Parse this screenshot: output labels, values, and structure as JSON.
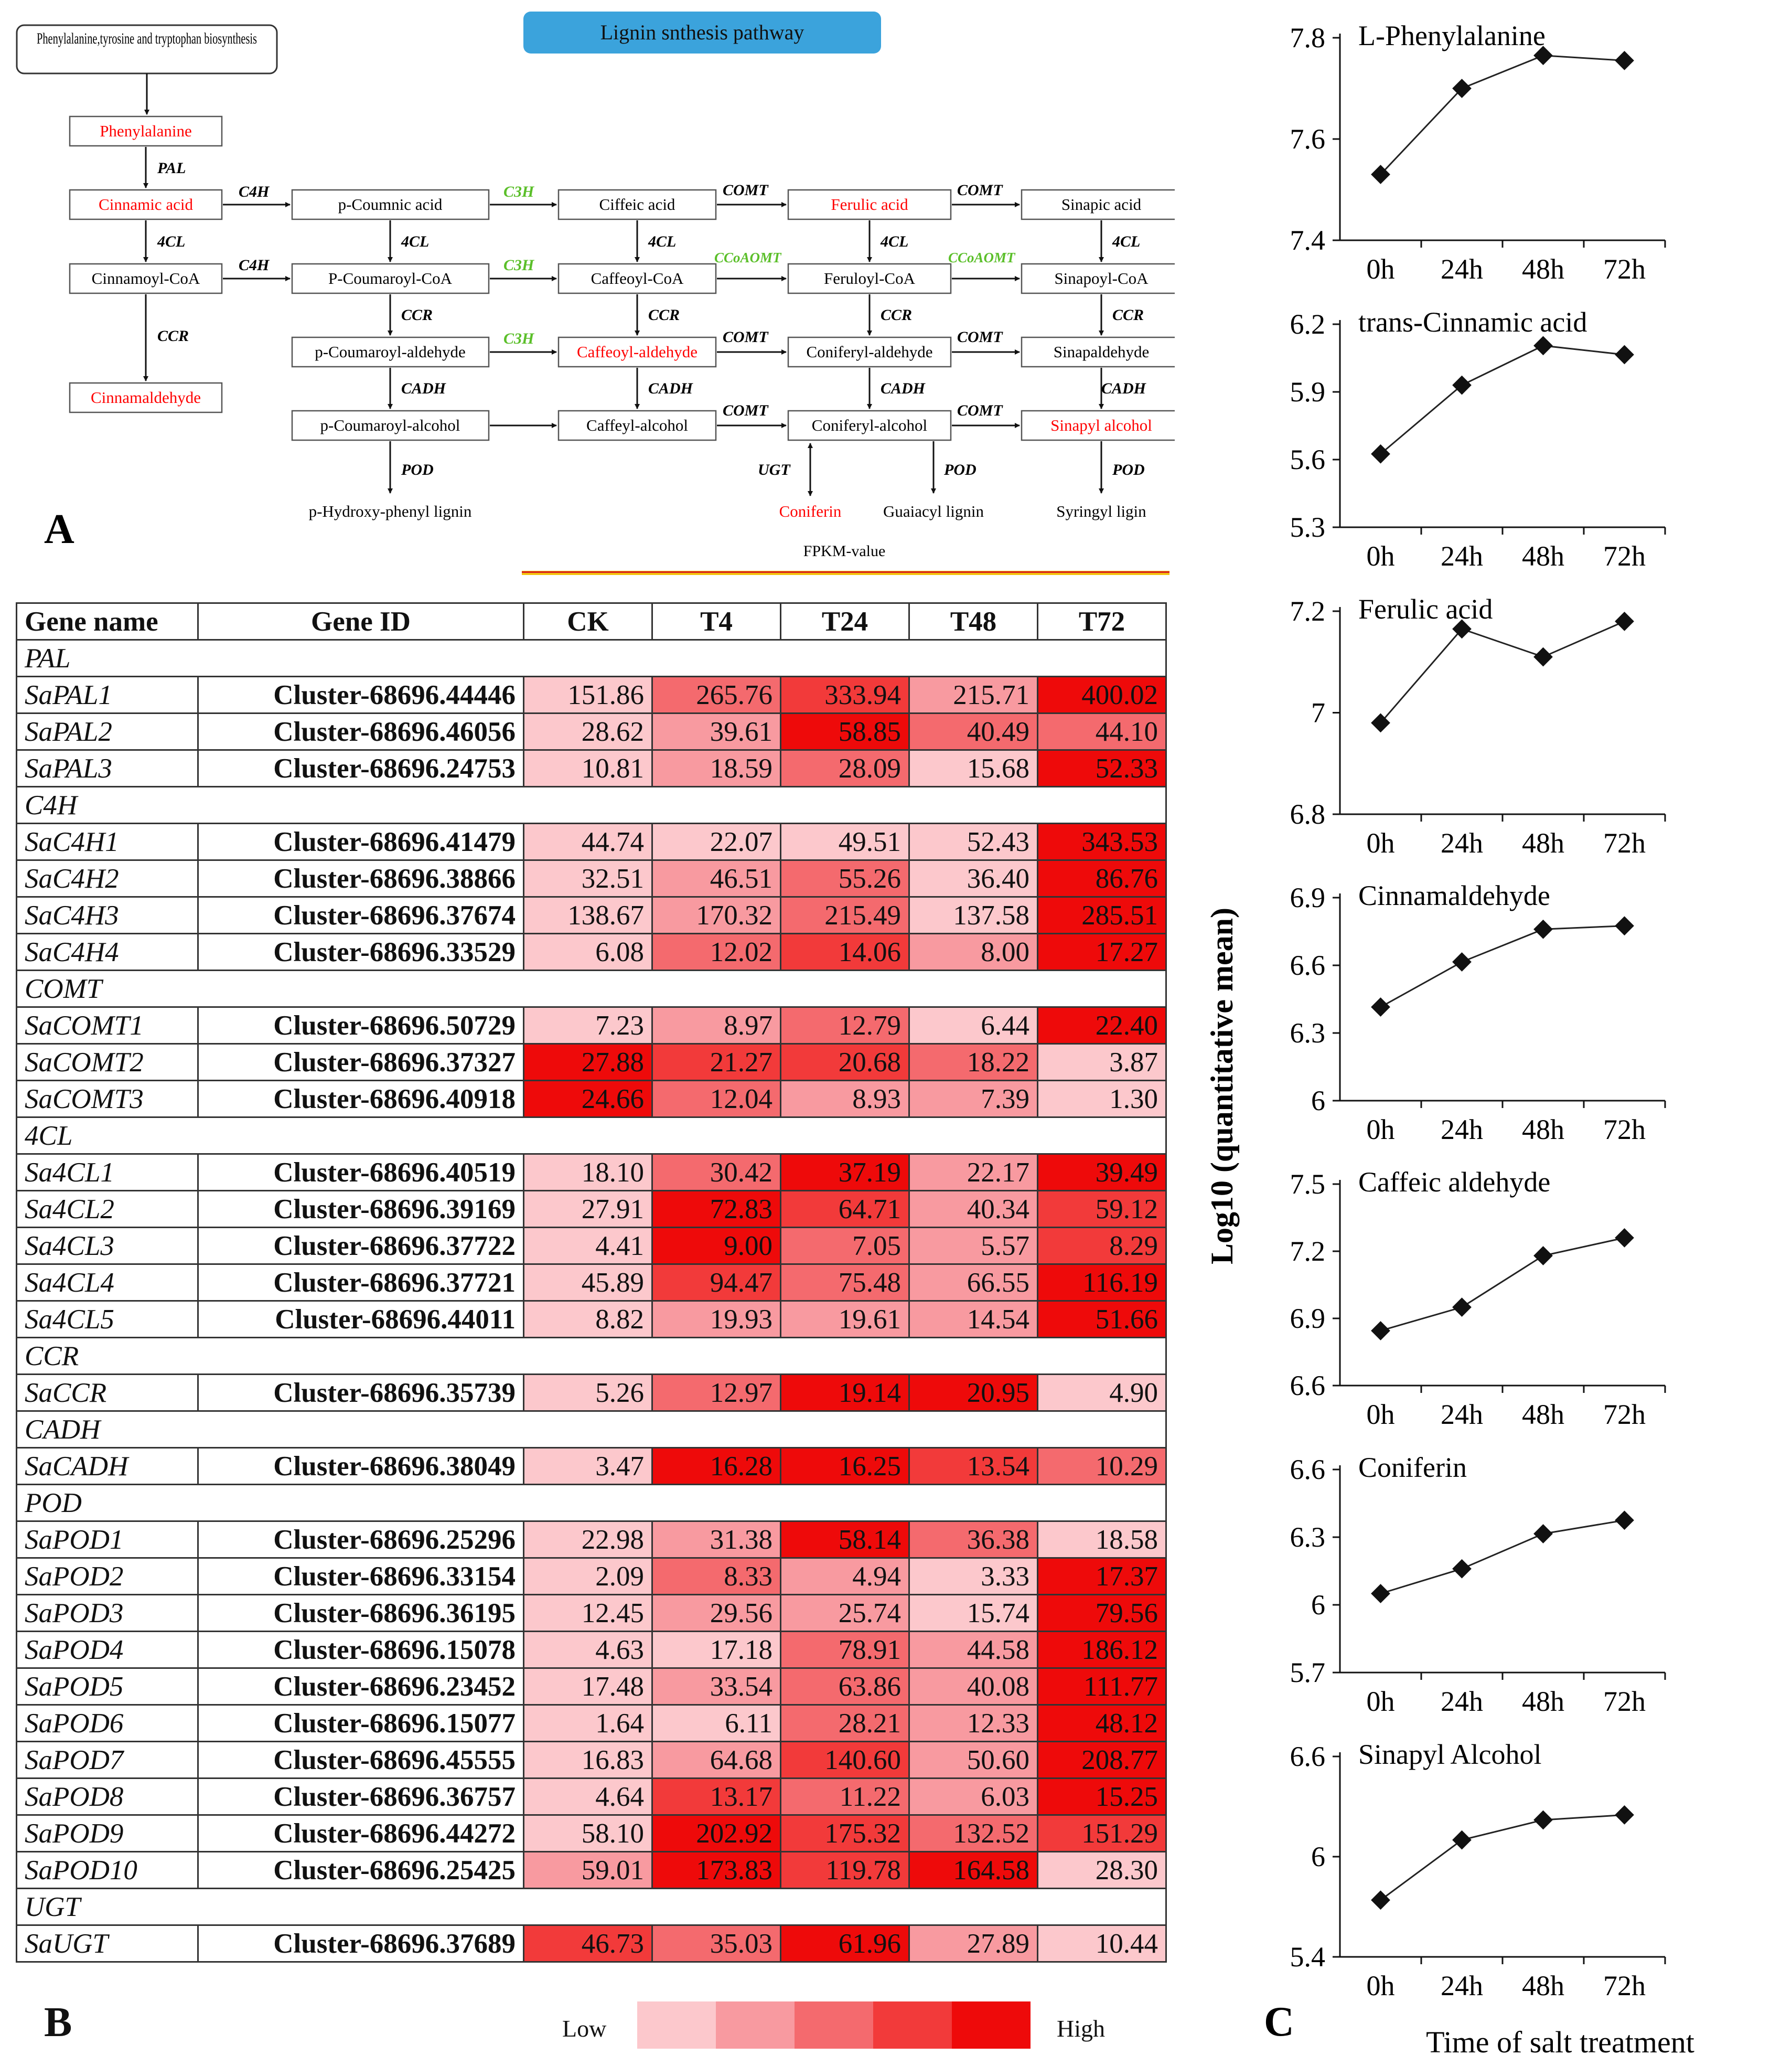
{
  "panel_a": {
    "letter": "A",
    "title": "Lignin snthesis pathway",
    "source_box": "Phenylalanine,tyrosine and tryptophan biosynthesis",
    "nodes": {
      "phe": "Phenylalanine",
      "cin": "Cinnamic acid",
      "pcoum": "p-Coumnic acid",
      "caff": "Ciffeic acid",
      "fer": "Ferulic acid",
      "sinap": "Sinapic acid",
      "cincoa": "Cinnamoyl-CoA",
      "pcoumcoa": "P-Coumaroyl-CoA",
      "caffcoa": "Caffeoyl-CoA",
      "fercoa": "Feruloyl-CoA",
      "sinapcoa": "Sinapoyl-CoA",
      "pcoumald": "p-Coumaroyl-aldehyde",
      "caffald": "Caffeoyl-aldehyde",
      "conald": "Coniferyl-aldehyde",
      "sinapald": "Sinapaldehyde",
      "cinald": "Cinnamaldehyde",
      "pcoumalc": "p-Coumaroyl-alcohol",
      "caffalc": "Caffeyl-alcohol",
      "conalc": "Coniferyl-alcohol",
      "sinapalc": "Sinapyl alcohol",
      "phlig": "p-Hydroxy-phenyl lignin",
      "coniferin": "Coniferin",
      "guaiacyl": "Guaiacyl lignin",
      "syringyl": "Syringyl ligin"
    },
    "enzymes": {
      "pal": "PAL",
      "c4h": "C4H",
      "c3h": "C3H",
      "comt": "COMT",
      "cl4": "4CL",
      "ccoaomt": "CCoAOMT",
      "ccr": "CCR",
      "cadh": "CADH",
      "pod": "POD",
      "ugt": "UGT"
    },
    "colors": {
      "metabolite": "#ff0000",
      "gene_green": "#5bbf2a",
      "title_bg": "#3ba3dc"
    }
  },
  "panel_b": {
    "letter": "B",
    "scale_label": "FPKM-value",
    "legend_low": "Low",
    "legend_high": "High",
    "headers": [
      "Gene name",
      "Gene ID",
      "CK",
      "T4",
      "T24",
      "T48",
      "T72"
    ],
    "heat_colors": [
      "#fcc8cc",
      "#f89aa0",
      "#f46a6e",
      "#f23a3a",
      "#ee0a0a"
    ],
    "groups": [
      {
        "name": "PAL",
        "rows": [
          {
            "gene": "SaPAL1",
            "id": "Cluster-68696.44446",
            "values": [
              "151.86",
              "265.76",
              "333.94",
              "215.71",
              "400.02"
            ]
          },
          {
            "gene": "SaPAL2",
            "id": "Cluster-68696.46056",
            "values": [
              "28.62",
              "39.61",
              "58.85",
              "40.49",
              "44.10"
            ]
          },
          {
            "gene": "SaPAL3",
            "id": "Cluster-68696.24753",
            "values": [
              "10.81",
              "18.59",
              "28.09",
              "15.68",
              "52.33"
            ]
          }
        ]
      },
      {
        "name": "C4H",
        "rows": [
          {
            "gene": "SaC4H1",
            "id": "Cluster-68696.41479",
            "values": [
              "44.74",
              "22.07",
              "49.51",
              "52.43",
              "343.53"
            ]
          },
          {
            "gene": "SaC4H2",
            "id": "Cluster-68696.38866",
            "values": [
              "32.51",
              "46.51",
              "55.26",
              "36.40",
              "86.76"
            ]
          },
          {
            "gene": "SaC4H3",
            "id": "Cluster-68696.37674",
            "values": [
              "138.67",
              "170.32",
              "215.49",
              "137.58",
              "285.51"
            ]
          },
          {
            "gene": "SaC4H4",
            "id": "Cluster-68696.33529",
            "values": [
              "6.08",
              "12.02",
              "14.06",
              "8.00",
              "17.27"
            ]
          }
        ]
      },
      {
        "name": "COMT",
        "rows": [
          {
            "gene": "SaCOMT1",
            "id": "Cluster-68696.50729",
            "values": [
              "7.23",
              "8.97",
              "12.79",
              "6.44",
              "22.40"
            ]
          },
          {
            "gene": "SaCOMT2",
            "id": "Cluster-68696.37327",
            "values": [
              "27.88",
              "21.27",
              "20.68",
              "18.22",
              "3.87"
            ]
          },
          {
            "gene": "SaCOMT3",
            "id": "Cluster-68696.40918",
            "values": [
              "24.66",
              "12.04",
              "8.93",
              "7.39",
              "1.30"
            ]
          }
        ]
      },
      {
        "name": "4CL",
        "rows": [
          {
            "gene": "Sa4CL1",
            "id": "Cluster-68696.40519",
            "values": [
              "18.10",
              "30.42",
              "37.19",
              "22.17",
              "39.49"
            ]
          },
          {
            "gene": "Sa4CL2",
            "id": "Cluster-68696.39169",
            "values": [
              "27.91",
              "72.83",
              "64.71",
              "40.34",
              "59.12"
            ]
          },
          {
            "gene": "Sa4CL3",
            "id": "Cluster-68696.37722",
            "values": [
              "4.41",
              "9.00",
              "7.05",
              "5.57",
              "8.29"
            ]
          },
          {
            "gene": "Sa4CL4",
            "id": "Cluster-68696.37721",
            "values": [
              "45.89",
              "94.47",
              "75.48",
              "66.55",
              "116.19"
            ]
          },
          {
            "gene": "Sa4CL5",
            "id": "Cluster-68696.44011",
            "values": [
              "8.82",
              "19.93",
              "19.61",
              "14.54",
              "51.66"
            ]
          }
        ]
      },
      {
        "name": "CCR",
        "rows": [
          {
            "gene": "SaCCR",
            "id": "Cluster-68696.35739",
            "values": [
              "5.26",
              "12.97",
              "19.14",
              "20.95",
              "4.90"
            ]
          }
        ]
      },
      {
        "name": "CADH",
        "rows": [
          {
            "gene": "SaCADH",
            "id": "Cluster-68696.38049",
            "values": [
              "3.47",
              "16.28",
              "16.25",
              "13.54",
              "10.29"
            ]
          }
        ]
      },
      {
        "name": "POD",
        "rows": [
          {
            "gene": "SaPOD1",
            "id": "Cluster-68696.25296",
            "values": [
              "22.98",
              "31.38",
              "58.14",
              "36.38",
              "18.58"
            ]
          },
          {
            "gene": "SaPOD2",
            "id": "Cluster-68696.33154",
            "values": [
              "2.09",
              "8.33",
              "4.94",
              "3.33",
              "17.37"
            ]
          },
          {
            "gene": "SaPOD3",
            "id": "Cluster-68696.36195",
            "values": [
              "12.45",
              "29.56",
              "25.74",
              "15.74",
              "79.56"
            ]
          },
          {
            "gene": "SaPOD4",
            "id": "Cluster-68696.15078",
            "values": [
              "4.63",
              "17.18",
              "78.91",
              "44.58",
              "186.12"
            ]
          },
          {
            "gene": "SaPOD5",
            "id": "Cluster-68696.23452",
            "values": [
              "17.48",
              "33.54",
              "63.86",
              "40.08",
              "111.77"
            ]
          },
          {
            "gene": "SaPOD6",
            "id": "Cluster-68696.15077",
            "values": [
              "1.64",
              "6.11",
              "28.21",
              "12.33",
              "48.12"
            ]
          },
          {
            "gene": "SaPOD7",
            "id": "Cluster-68696.45555",
            "values": [
              "16.83",
              "64.68",
              "140.60",
              "50.60",
              "208.77"
            ]
          },
          {
            "gene": "SaPOD8",
            "id": "Cluster-68696.36757",
            "values": [
              "4.64",
              "13.17",
              "11.22",
              "6.03",
              "15.25"
            ]
          },
          {
            "gene": "SaPOD9",
            "id": "Cluster-68696.44272",
            "values": [
              "58.10",
              "202.92",
              "175.32",
              "132.52",
              "151.29"
            ]
          },
          {
            "gene": "SaPOD10",
            "id": "Cluster-68696.25425",
            "values": [
              "59.01",
              "173.83",
              "119.78",
              "164.58",
              "28.30"
            ]
          }
        ]
      },
      {
        "name": "UGT",
        "rows": [
          {
            "gene": "SaUGT",
            "id": "Cluster-68696.37689",
            "values": [
              "46.73",
              "35.03",
              "61.96",
              "27.89",
              "10.44"
            ]
          }
        ]
      }
    ]
  },
  "panel_c": {
    "letter": "C",
    "ylabel": "Log10 (quantitative mean)",
    "xlabel": "Time of salt treatment"
  },
  "chart_data": [
    {
      "type": "line",
      "title": "L-Phenylalanine",
      "categories": [
        "0h",
        "24h",
        "48h",
        "72h"
      ],
      "values": [
        7.53,
        7.7,
        7.765,
        7.755
      ],
      "ylim": [
        7.4,
        7.8
      ],
      "yticks": [
        "7.4",
        "7.6",
        "7.8"
      ],
      "tick_values": [
        7.4,
        7.6,
        7.8
      ]
    },
    {
      "type": "line",
      "title": "trans-Cinnamic acid",
      "categories": [
        "0h",
        "24h",
        "48h",
        "72h"
      ],
      "values": [
        5.625,
        5.93,
        6.105,
        6.065
      ],
      "ylim": [
        5.3,
        6.2
      ],
      "yticks": [
        "5.3",
        "5.6",
        "5.9",
        "6.2"
      ],
      "tick_values": [
        5.3,
        5.6,
        5.9,
        6.2
      ]
    },
    {
      "type": "line",
      "title": "Ferulic acid",
      "categories": [
        "0h",
        "24h",
        "48h",
        "72h"
      ],
      "values": [
        6.98,
        7.165,
        7.11,
        7.18
      ],
      "ylim": [
        6.8,
        7.2
      ],
      "yticks": [
        "6.8",
        "7",
        "7.2"
      ],
      "tick_values": [
        6.8,
        7.0,
        7.2
      ]
    },
    {
      "type": "line",
      "title": "Cinnamaldehyde",
      "categories": [
        "0h",
        "24h",
        "48h",
        "72h"
      ],
      "values": [
        6.415,
        6.615,
        6.76,
        6.775
      ],
      "ylim": [
        6.0,
        6.9
      ],
      "yticks": [
        "6",
        "6.3",
        "6.6",
        "6.9"
      ],
      "tick_values": [
        6.0,
        6.3,
        6.6,
        6.9
      ]
    },
    {
      "type": "line",
      "title": "Caffeic aldehyde",
      "categories": [
        "0h",
        "24h",
        "48h",
        "72h"
      ],
      "values": [
        6.845,
        6.95,
        7.18,
        7.26
      ],
      "ylim": [
        6.6,
        7.5
      ],
      "yticks": [
        "6.6",
        "6.9",
        "7.2",
        "7.5"
      ],
      "tick_values": [
        6.6,
        6.9,
        7.2,
        7.5
      ]
    },
    {
      "type": "line",
      "title": "Coniferin",
      "categories": [
        "0h",
        "24h",
        "48h",
        "72h"
      ],
      "values": [
        6.05,
        6.16,
        6.315,
        6.375
      ],
      "ylim": [
        5.7,
        6.6
      ],
      "yticks": [
        "5.7",
        "6",
        "6.3",
        "6.6"
      ],
      "tick_values": [
        5.7,
        6.0,
        6.3,
        6.6
      ]
    },
    {
      "type": "line",
      "title": "Sinapyl Alcohol",
      "categories": [
        "0h",
        "24h",
        "48h",
        "72h"
      ],
      "values": [
        5.74,
        6.1,
        6.22,
        6.25
      ],
      "ylim": [
        5.4,
        6.6
      ],
      "yticks": [
        "5.4",
        "6",
        "6.6"
      ],
      "tick_values": [
        5.4,
        6.0,
        6.6
      ]
    }
  ]
}
